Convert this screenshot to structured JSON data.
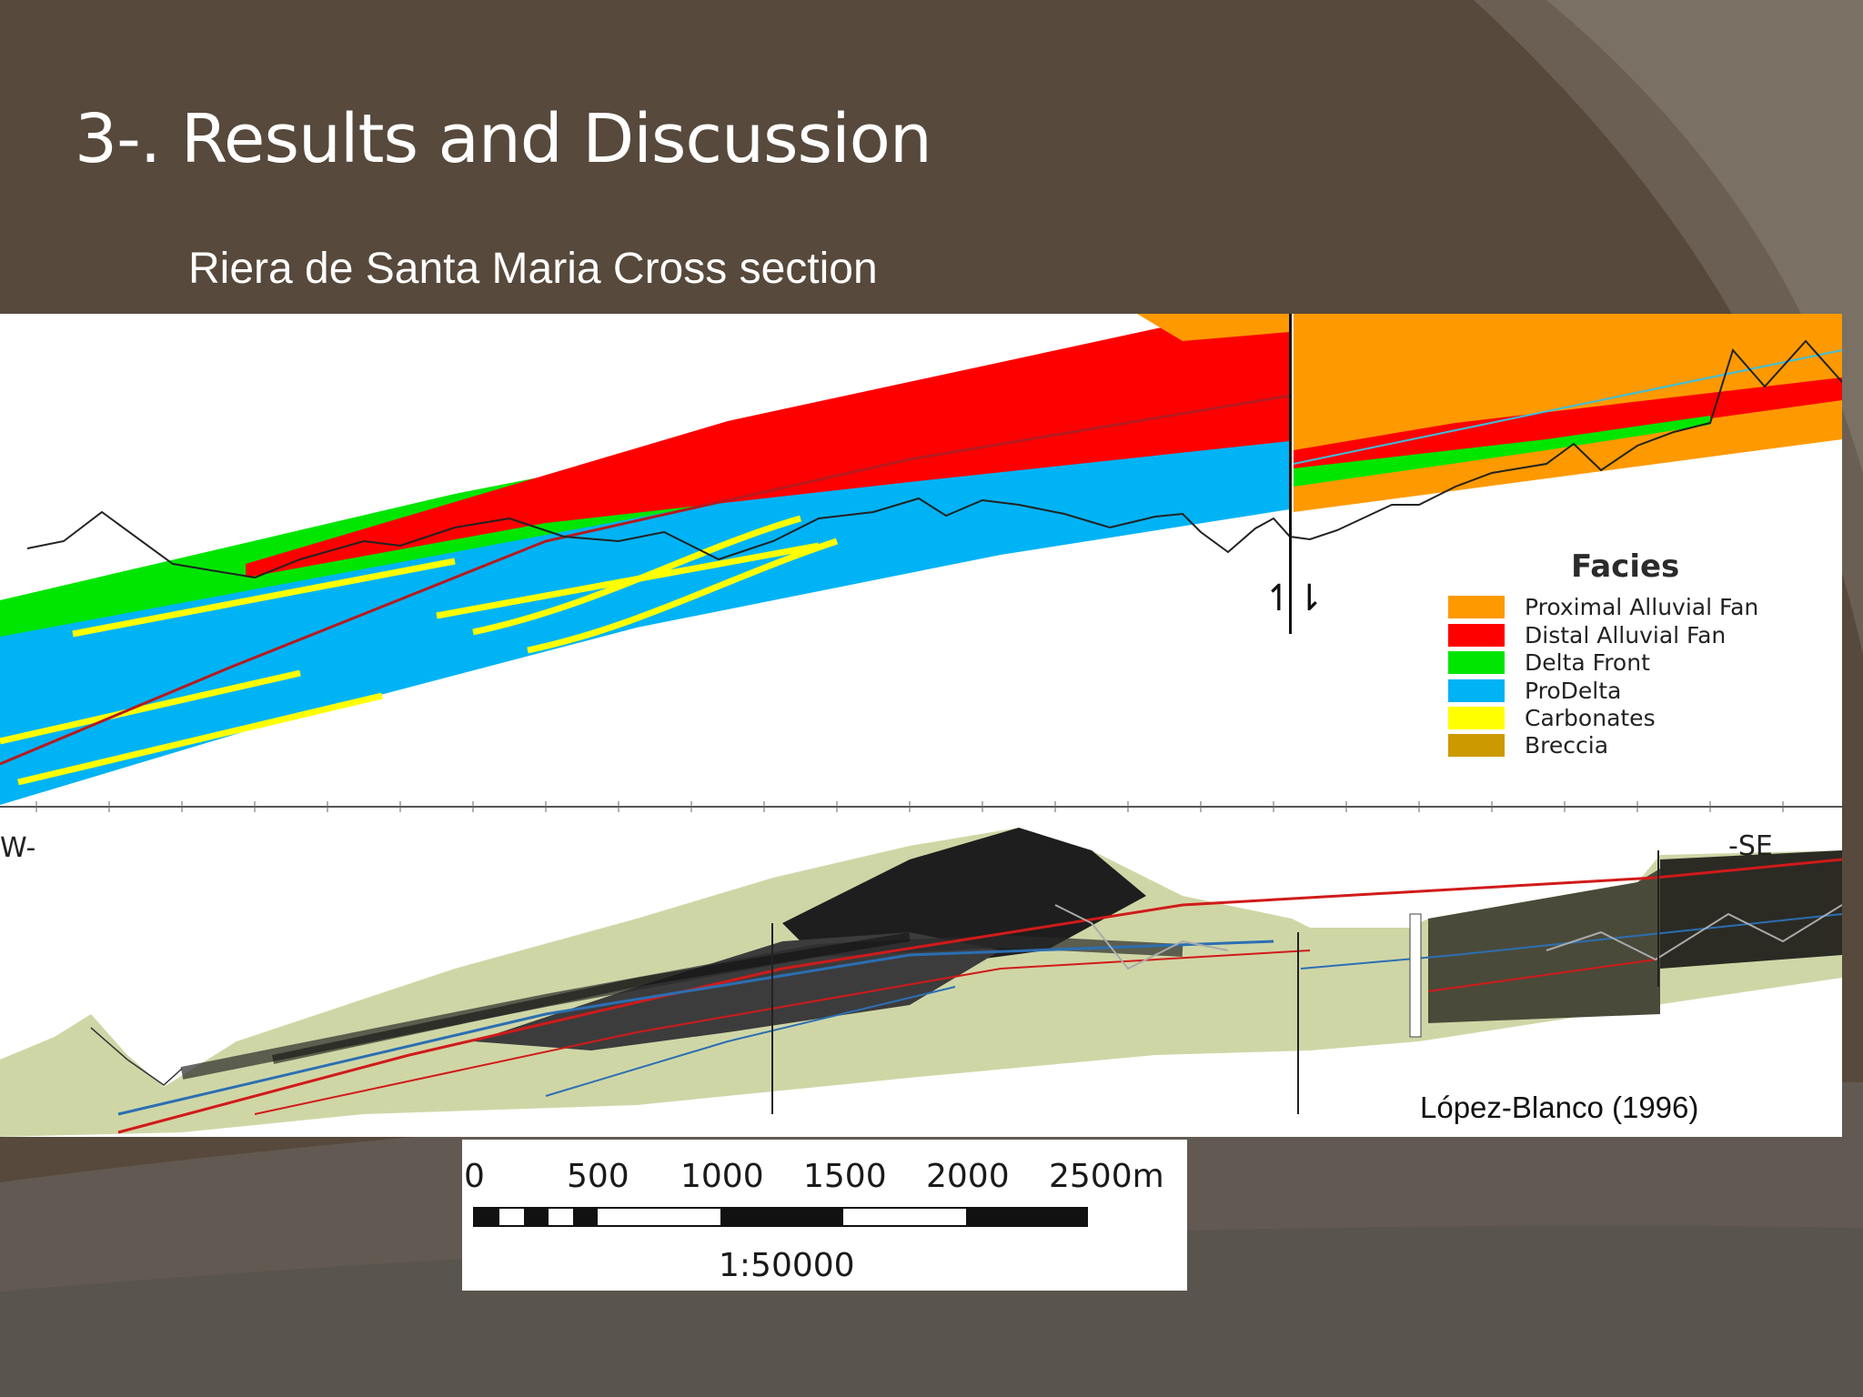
{
  "slide": {
    "title": "3-. Results and Discussion",
    "subtitle": "Riera de Santa Maria Cross section",
    "colors": {
      "background": "#57493b",
      "text": "#ffffff"
    }
  },
  "figure": {
    "legend": {
      "title": "Facies",
      "items": [
        {
          "label": "Proximal Alluvial Fan",
          "color": "#ff9900"
        },
        {
          "label": "Distal Alluvial Fan",
          "color": "#ff0000"
        },
        {
          "label": "Delta Front",
          "color": "#00e600"
        },
        {
          "label": "ProDelta",
          "color": "#00b3f5"
        },
        {
          "label": "Carbonates",
          "color": "#ffff00"
        },
        {
          "label": "Breccia",
          "color": "#cc9900"
        }
      ]
    },
    "fault_symbol": "↿⇂",
    "orientation_left": "W-",
    "orientation_right": "-SE",
    "credit": "López-Blanco (1996)"
  },
  "scale_bar": {
    "tick_labels": [
      "0",
      "500",
      "1000",
      "1500",
      "2000",
      "2500m"
    ],
    "ratio": "1:50000"
  }
}
